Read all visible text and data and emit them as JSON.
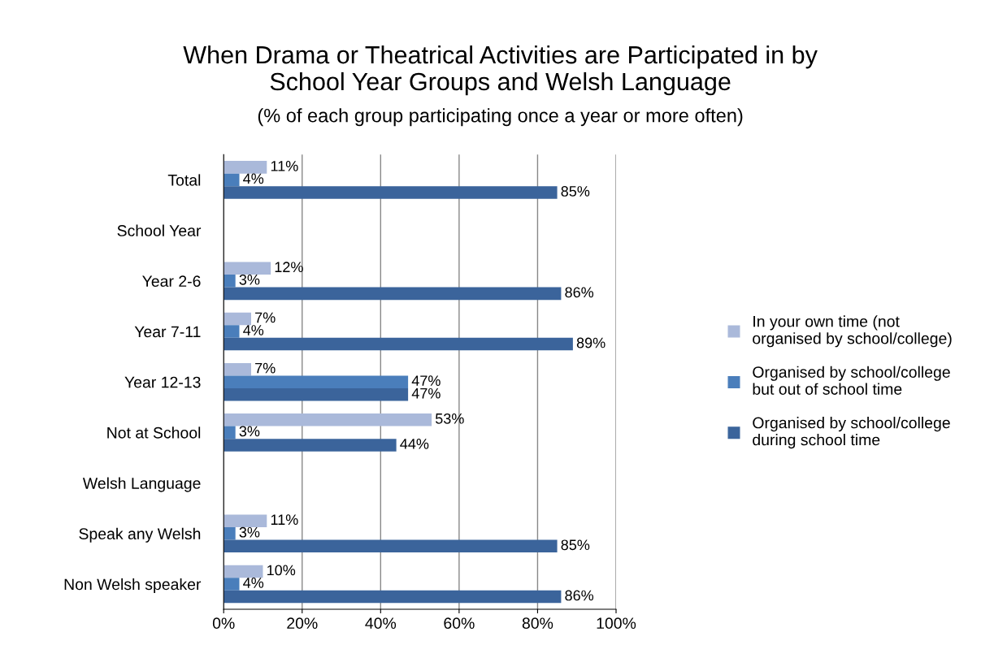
{
  "chart_data": {
    "type": "bar",
    "orientation": "horizontal",
    "title": "When Drama or Theatrical Activities are Participated in by\nSchool Year Groups and Welsh Language",
    "subtitle": "(% of each group participating once a year or more often)",
    "categories": [
      "Total",
      "School Year",
      "Year 2-6",
      "Year 7-11",
      "Year 12-13",
      "Not at School",
      "Welsh Language",
      "Speak any Welsh",
      "Non Welsh speaker"
    ],
    "series": [
      {
        "name": "In your own time (not\norganised by school/college)",
        "color": "#aab9da",
        "values": [
          11,
          null,
          12,
          7,
          7,
          53,
          null,
          11,
          10
        ],
        "value_labels": [
          "11%",
          null,
          "12%",
          "7%",
          "7%",
          "53%",
          null,
          "11%",
          "10%"
        ]
      },
      {
        "name": "Organised by school/college\nbut out of school time",
        "color": "#4a7ebb",
        "values": [
          4,
          null,
          3,
          4,
          47,
          3,
          null,
          3,
          4
        ],
        "value_labels": [
          "4%",
          null,
          "3%",
          "4%",
          "47%",
          "3%",
          null,
          "3%",
          "4%"
        ]
      },
      {
        "name": "Organised by school/college\nduring school time",
        "color": "#3b649b",
        "values": [
          85,
          null,
          86,
          89,
          47,
          44,
          null,
          85,
          86
        ],
        "value_labels": [
          "85%",
          null,
          "86%",
          "89%",
          "47%",
          "44%",
          null,
          "85%",
          "86%"
        ]
      }
    ],
    "xlim": [
      0,
      100
    ],
    "xticks": [
      {
        "value": 0,
        "label": "0%"
      },
      {
        "value": 20,
        "label": "20%"
      },
      {
        "value": 40,
        "label": "40%"
      },
      {
        "value": 60,
        "label": "60%"
      },
      {
        "value": 80,
        "label": "80%"
      },
      {
        "value": 100,
        "label": "100%"
      }
    ],
    "grid": "x",
    "legend": "right"
  }
}
